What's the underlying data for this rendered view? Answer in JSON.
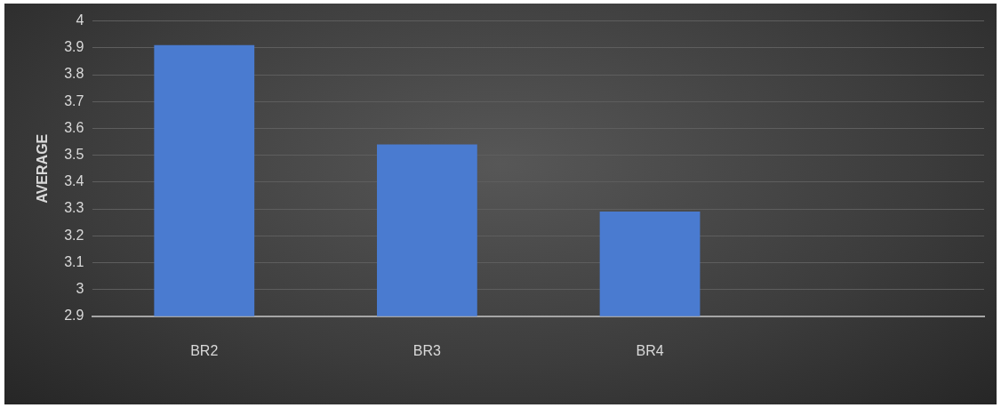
{
  "chart_data": {
    "type": "bar",
    "ylabel": "AVERAGE",
    "categories": [
      "BR2",
      "BR3",
      "BR4",
      null
    ],
    "values": [
      3.91,
      3.54,
      3.29,
      null
    ],
    "color": "#4a7bd0",
    "ylim": [
      2.9,
      4
    ],
    "yticks": [
      2.9,
      3,
      3.1,
      3.2,
      3.3,
      3.4,
      3.5,
      3.6,
      3.7,
      3.8,
      3.9,
      4
    ],
    "grid": "y",
    "legend": false
  }
}
